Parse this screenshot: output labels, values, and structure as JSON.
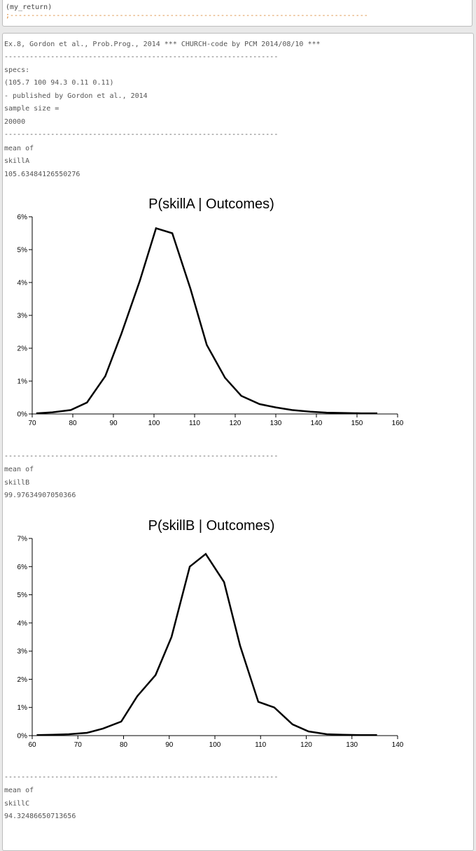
{
  "code": {
    "line1": "(my_return)",
    "separator": ";-------------------------------------------------------------------------------------"
  },
  "output": {
    "header": "Ex.8, Gordon et al., Prob.Prog., 2014 *** CHURCH-code by PCM 2014/08/10 ***",
    "separator": "-----------------------------------------------------------------",
    "specs_label": "specs:",
    "specs_value": "(105.7 100 94.3 0.11 0.11)",
    "published": "- published by Gordon et al., 2014",
    "sample_label": "sample size =",
    "sample_value": "20000",
    "skillA": {
      "mean_label": "mean of",
      "name": "skillA",
      "mean_value": "105.63484126550276"
    },
    "skillB": {
      "mean_label": "mean of",
      "name": "skillB",
      "mean_value": "99.97634907050366"
    },
    "skillC": {
      "mean_label": "mean of",
      "name": "skillC",
      "mean_value": "94.32486650713656"
    }
  },
  "chart_data": [
    {
      "type": "line",
      "title": "P(skillA | Outcomes)",
      "xlim": [
        70,
        160
      ],
      "ylim": [
        0,
        6
      ],
      "x_ticks": [
        70,
        80,
        90,
        100,
        110,
        120,
        130,
        140,
        150,
        160
      ],
      "y_ticks": [
        0,
        1,
        2,
        3,
        4,
        5,
        6
      ],
      "y_unit": "%",
      "x": [
        71,
        75,
        79.5,
        83.5,
        88,
        92,
        96.5,
        100.5,
        104.5,
        109,
        113,
        117.5,
        121.5,
        126,
        130,
        134,
        138.5,
        142.5,
        147,
        151,
        155
      ],
      "values": [
        0.02,
        0.05,
        0.12,
        0.35,
        1.15,
        2.45,
        4.05,
        5.65,
        5.5,
        3.8,
        2.1,
        1.1,
        0.55,
        0.3,
        0.2,
        0.12,
        0.07,
        0.04,
        0.03,
        0.02,
        0.02
      ]
    },
    {
      "type": "line",
      "title": "P(skillB | Outcomes)",
      "xlim": [
        60,
        140
      ],
      "ylim": [
        0,
        7
      ],
      "x_ticks": [
        60,
        70,
        80,
        90,
        100,
        110,
        120,
        130,
        140
      ],
      "y_ticks": [
        0,
        1,
        2,
        3,
        4,
        5,
        6,
        7
      ],
      "y_unit": "%",
      "x": [
        61,
        64.5,
        68,
        72,
        75.5,
        79.5,
        83,
        87,
        90.5,
        94.5,
        98,
        102,
        105.5,
        109.5,
        113,
        117,
        120.5,
        124.5,
        128,
        132,
        135.5
      ],
      "values": [
        0.02,
        0.03,
        0.05,
        0.1,
        0.25,
        0.5,
        1.4,
        2.15,
        3.5,
        6.0,
        6.45,
        5.45,
        3.2,
        1.2,
        1.0,
        0.4,
        0.15,
        0.05,
        0.03,
        0.02,
        0.02
      ]
    }
  ]
}
